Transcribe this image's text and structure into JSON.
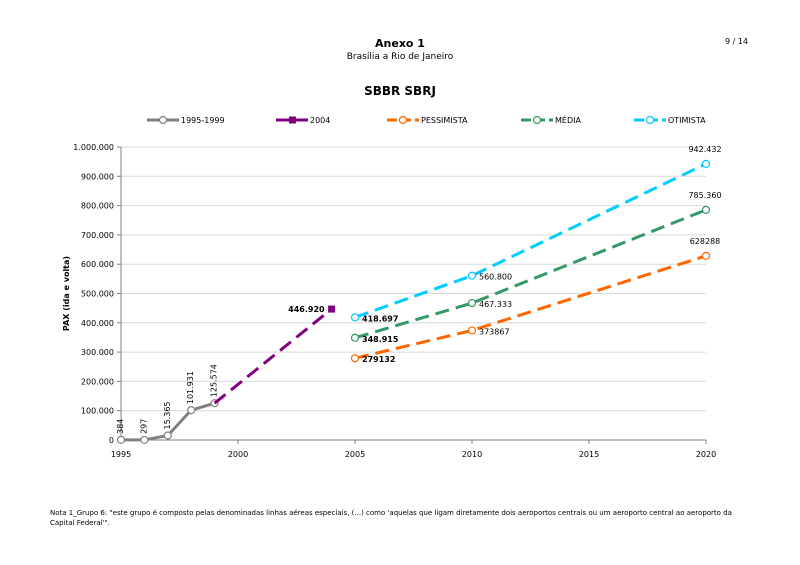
{
  "header": {
    "page_number": "9 / 14",
    "title": "Anexo 1",
    "subtitle": "Brasília a Rio de Janeiro"
  },
  "note": "Nota 1_Grupo 6: \"este grupo é composto pelas denominadas linhas aéreas especiais, (...) como 'aquelas que ligam diretamente dois aeroportos centrais ou um aeroporto central ao aeroporto da Capital Federal'\".",
  "chart_data": {
    "type": "line",
    "title": "SBBR SBRJ",
    "ylabel": "PAX (ida e volta)",
    "xlabel": "",
    "xlim": [
      1995,
      2020
    ],
    "ylim": [
      0,
      1000000
    ],
    "x_ticks": [
      "1995",
      "2000",
      "2005",
      "2010",
      "2015",
      "2020"
    ],
    "y_ticks": [
      "0",
      "100.000",
      "200.000",
      "300.000",
      "400.000",
      "500.000",
      "600.000",
      "700.000",
      "800.000",
      "900.000",
      "1.000.000"
    ],
    "grid": "horizontal",
    "legend_position": "top",
    "series": [
      {
        "name": "1995-1999",
        "color": "#808080",
        "style": "solid",
        "x": [
          1995,
          1996,
          1997,
          1998,
          1999
        ],
        "y": [
          384,
          297,
          15365,
          101931,
          125574
        ],
        "labels": [
          "384",
          "297",
          "15.365",
          "101.931",
          "125.574"
        ],
        "markers": [
          0,
          1,
          2,
          3,
          4
        ]
      },
      {
        "name": "2004",
        "color": "#800080",
        "style": "dashed",
        "x": [
          1999,
          2004
        ],
        "y": [
          125574,
          446920
        ],
        "labels": [
          "",
          "446.920"
        ],
        "markers": [
          1
        ]
      },
      {
        "name": "PESSIMISTA",
        "color": "#ff6600",
        "style": "dashed",
        "x": [
          2005,
          2010,
          2020
        ],
        "y": [
          279132,
          373867,
          628288
        ],
        "labels": [
          "279132",
          "373867",
          "628288"
        ],
        "markers": [
          0,
          1,
          2
        ]
      },
      {
        "name": "MÉDIA",
        "color": "#339966",
        "style": "dashed",
        "x": [
          2005,
          2010,
          2020
        ],
        "y": [
          348915,
          467333,
          785360
        ],
        "labels": [
          "348.915",
          "467.333",
          "785.360"
        ],
        "markers": [
          0,
          1,
          2
        ]
      },
      {
        "name": "OTIMISTA",
        "color": "#00ccff",
        "style": "dashed",
        "x": [
          2005,
          2010,
          2020
        ],
        "y": [
          418697,
          560800,
          942432
        ],
        "labels": [
          "418.697",
          "560.800",
          "942.432"
        ],
        "markers": [
          0,
          1,
          2
        ]
      }
    ]
  }
}
